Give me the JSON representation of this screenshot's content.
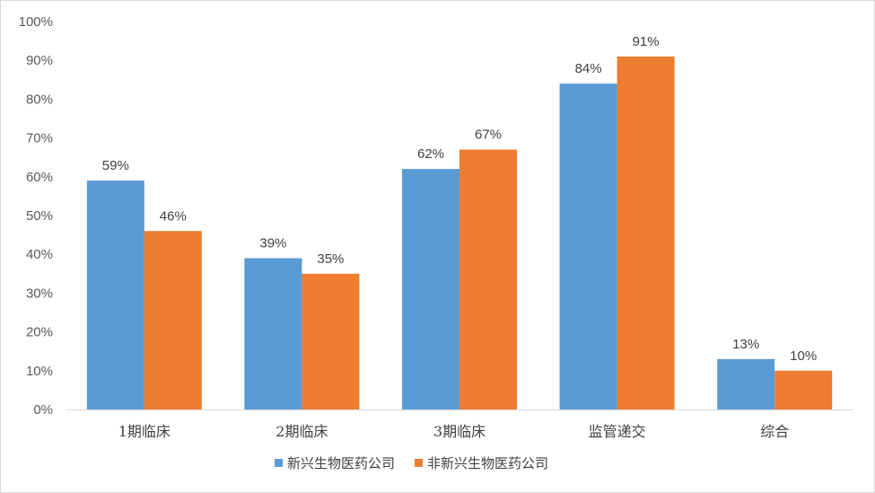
{
  "chart_data": {
    "type": "bar",
    "categories": [
      "1期临床",
      "2期临床",
      "3期临床",
      "监管递交",
      "综合"
    ],
    "series": [
      {
        "name": "新兴生物医药公司",
        "values": [
          59,
          39,
          62,
          84,
          13
        ],
        "labels": [
          "59%",
          "39%",
          "62%",
          "84%",
          "13%"
        ],
        "color": "#5b9bd5"
      },
      {
        "name": "非新兴生物医药公司",
        "values": [
          46,
          35,
          67,
          91,
          10
        ],
        "labels": [
          "46%",
          "35%",
          "67%",
          "91%",
          "10%"
        ],
        "color": "#ed7d31"
      }
    ],
    "y_ticks": [
      "0%",
      "10%",
      "20%",
      "30%",
      "40%",
      "50%",
      "60%",
      "70%",
      "80%",
      "90%",
      "100%"
    ],
    "ylim": [
      0,
      100
    ],
    "unit": "%",
    "grid": false,
    "legend": "bottom-center",
    "title": "",
    "xlabel": "",
    "ylabel": ""
  }
}
